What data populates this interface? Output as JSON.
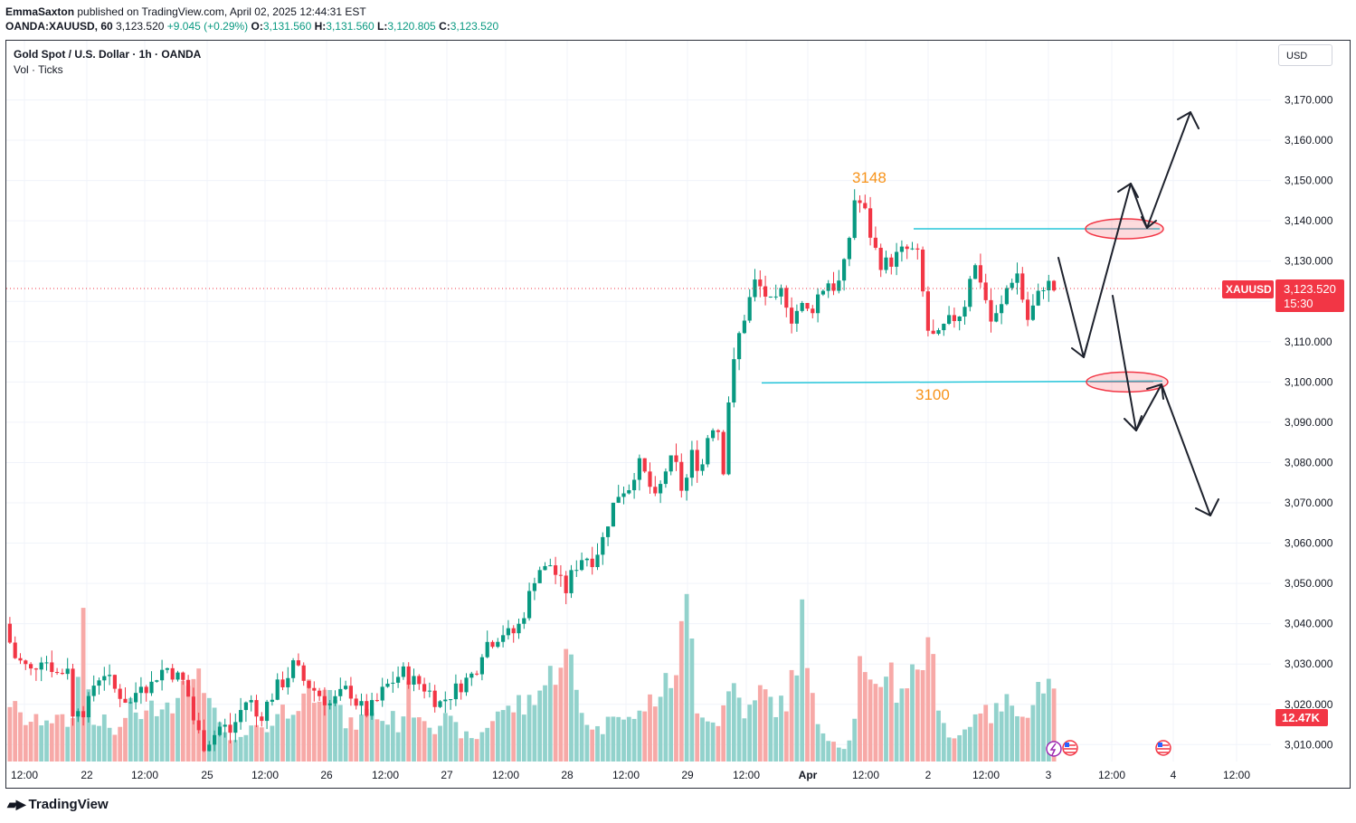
{
  "header": {
    "author": "EmmaSaxton",
    "published": "published on TradingView.com, April 02, 2025 12:44:31 EST",
    "symbol_line": "OANDA:XAUUSD, 60",
    "last": "3,123.520",
    "change": "+9.045 (+0.29%)",
    "o_label": "O:",
    "o": "3,131.560",
    "h_label": "H:",
    "h": "3,131.560",
    "l_label": "L:",
    "l": "3,120.805",
    "c_label": "C:",
    "c": "3,123.520"
  },
  "legend": {
    "title": "Gold Spot / U.S. Dollar · 1h · OANDA",
    "sub": "Vol · Ticks"
  },
  "currency_button": "USD",
  "price_tag": {
    "symbol": "XAUUSD",
    "price": "3,123.520",
    "countdown": "15:30"
  },
  "volume_tag": "12.47K",
  "branding": "TradingView",
  "colors": {
    "up": "#089981",
    "down": "#f23645",
    "up_vol": "#92d2cc",
    "down_vol": "#f7a9a7",
    "level_line": "#26c6da",
    "annotation": "#f7931a"
  },
  "chart_data": {
    "type": "candlestick",
    "price_axis": {
      "ylim": [
        3005,
        3178
      ],
      "ticks": [
        "3,170.000",
        "3,160.000",
        "3,150.000",
        "3,140.000",
        "3,130.000",
        "3,120.000",
        "3,110.000",
        "3,100.000",
        "3,090.000",
        "3,080.000",
        "3,070.000",
        "3,060.000",
        "3,050.000",
        "3,040.000",
        "3,030.000",
        "3,020.000",
        "3,010.000"
      ]
    },
    "time_axis": {
      "ticks": [
        "12:00",
        "22",
        "12:00",
        "25",
        "12:00",
        "26",
        "12:00",
        "27",
        "12:00",
        "28",
        "12:00",
        "29",
        "12:00",
        "Apr",
        "12:00",
        "2",
        "12:00",
        "3",
        "12:00",
        "4",
        "12:00"
      ]
    },
    "price_path": [
      [
        0,
        3040
      ],
      [
        10,
        3032
      ],
      [
        20,
        3030
      ],
      [
        30,
        3028
      ],
      [
        40,
        3032
      ],
      [
        50,
        3030
      ],
      [
        60,
        3027
      ],
      [
        70,
        3030
      ],
      [
        72,
        3014
      ],
      [
        80,
        3020
      ],
      [
        90,
        3018
      ],
      [
        100,
        3026
      ],
      [
        110,
        3028
      ],
      [
        120,
        3024
      ],
      [
        130,
        3022
      ],
      [
        140,
        3020
      ],
      [
        150,
        3026
      ],
      [
        160,
        3024
      ],
      [
        170,
        3028
      ],
      [
        180,
        3029
      ],
      [
        190,
        3027
      ],
      [
        200,
        3025
      ],
      [
        210,
        3015
      ],
      [
        220,
        3010
      ],
      [
        230,
        3012
      ],
      [
        240,
        3015
      ],
      [
        250,
        3013
      ],
      [
        260,
        3018
      ],
      [
        270,
        3022
      ],
      [
        280,
        3016
      ],
      [
        290,
        3020
      ],
      [
        300,
        3024
      ],
      [
        310,
        3026
      ],
      [
        320,
        3030
      ],
      [
        330,
        3026
      ],
      [
        340,
        3024
      ],
      [
        350,
        3022
      ],
      [
        360,
        3020
      ],
      [
        370,
        3022
      ],
      [
        380,
        3024
      ],
      [
        390,
        3020
      ],
      [
        400,
        3018
      ],
      [
        410,
        3020
      ],
      [
        420,
        3024
      ],
      [
        430,
        3026
      ],
      [
        440,
        3028
      ],
      [
        450,
        3026
      ],
      [
        460,
        3025
      ],
      [
        470,
        3023
      ],
      [
        480,
        3020
      ],
      [
        490,
        3022
      ],
      [
        500,
        3024
      ],
      [
        510,
        3026
      ],
      [
        520,
        3028
      ],
      [
        530,
        3035
      ],
      [
        540,
        3036
      ],
      [
        550,
        3038
      ],
      [
        560,
        3037
      ],
      [
        570,
        3040
      ],
      [
        580,
        3047
      ],
      [
        590,
        3055
      ],
      [
        595,
        3051
      ],
      [
        600,
        3056
      ],
      [
        610,
        3052
      ],
      [
        620,
        3048
      ],
      [
        630,
        3054
      ],
      [
        640,
        3057
      ],
      [
        650,
        3056
      ],
      [
        660,
        3060
      ],
      [
        670,
        3068
      ],
      [
        680,
        3073
      ],
      [
        690,
        3074
      ],
      [
        700,
        3080
      ],
      [
        710,
        3076
      ],
      [
        720,
        3070
      ],
      [
        730,
        3078
      ],
      [
        740,
        3081
      ],
      [
        750,
        3072
      ],
      [
        760,
        3082
      ],
      [
        770,
        3078
      ],
      [
        780,
        3090
      ],
      [
        790,
        3088
      ],
      [
        795,
        3078
      ],
      [
        800,
        3095
      ],
      [
        810,
        3110
      ],
      [
        820,
        3118
      ],
      [
        830,
        3125
      ],
      [
        840,
        3122
      ],
      [
        850,
        3118
      ],
      [
        860,
        3123
      ],
      [
        870,
        3116
      ],
      [
        880,
        3119
      ],
      [
        890,
        3117
      ],
      [
        900,
        3122
      ],
      [
        910,
        3125
      ],
      [
        920,
        3123
      ],
      [
        930,
        3130
      ],
      [
        940,
        3146
      ],
      [
        950,
        3143
      ],
      [
        960,
        3134
      ],
      [
        970,
        3129
      ],
      [
        980,
        3130
      ],
      [
        990,
        3132
      ],
      [
        1000,
        3133
      ],
      [
        1010,
        3131
      ],
      [
        1020,
        3113
      ],
      [
        1030,
        3110
      ],
      [
        1040,
        3114
      ],
      [
        1050,
        3116
      ],
      [
        1060,
        3118
      ],
      [
        1070,
        3130
      ],
      [
        1080,
        3125
      ],
      [
        1090,
        3115
      ],
      [
        1100,
        3117
      ],
      [
        1110,
        3125
      ],
      [
        1120,
        3127
      ],
      [
        1130,
        3115
      ],
      [
        1140,
        3120
      ],
      [
        1150,
        3125
      ],
      [
        1160,
        3123
      ]
    ],
    "volume_path": [
      [
        0,
        0.35
      ],
      [
        10,
        0.25
      ],
      [
        20,
        0.23
      ],
      [
        30,
        0.22
      ],
      [
        40,
        0.26
      ],
      [
        50,
        0.24
      ],
      [
        60,
        0.22
      ],
      [
        70,
        0.23
      ],
      [
        80,
        0.9
      ],
      [
        90,
        0.2
      ],
      [
        100,
        0.25
      ],
      [
        110,
        0.18
      ],
      [
        120,
        0.15
      ],
      [
        130,
        0.3
      ],
      [
        140,
        0.28
      ],
      [
        150,
        0.26
      ],
      [
        160,
        0.32
      ],
      [
        170,
        0.36
      ],
      [
        180,
        0.3
      ],
      [
        190,
        0.6
      ],
      [
        200,
        0.3
      ],
      [
        210,
        0.6
      ],
      [
        220,
        0.35
      ],
      [
        230,
        0.2
      ],
      [
        240,
        0.14
      ],
      [
        250,
        0.1
      ],
      [
        260,
        0.14
      ],
      [
        270,
        0.2
      ],
      [
        280,
        0.15
      ],
      [
        290,
        0.26
      ],
      [
        300,
        0.3
      ],
      [
        310,
        0.24
      ],
      [
        320,
        0.35
      ],
      [
        330,
        0.42
      ],
      [
        340,
        0.4
      ],
      [
        350,
        0.55
      ],
      [
        360,
        0.32
      ],
      [
        370,
        0.22
      ],
      [
        380,
        0.2
      ],
      [
        390,
        0.25
      ],
      [
        400,
        0.3
      ],
      [
        410,
        0.22
      ],
      [
        420,
        0.26
      ],
      [
        430,
        0.2
      ],
      [
        440,
        0.38
      ],
      [
        450,
        0.28
      ],
      [
        460,
        0.26
      ],
      [
        470,
        0.2
      ],
      [
        480,
        0.24
      ],
      [
        490,
        0.2
      ],
      [
        500,
        0.16
      ],
      [
        510,
        0.12
      ],
      [
        520,
        0.15
      ],
      [
        530,
        0.22
      ],
      [
        540,
        0.3
      ],
      [
        550,
        0.28
      ],
      [
        560,
        0.33
      ],
      [
        570,
        0.3
      ],
      [
        580,
        0.4
      ],
      [
        590,
        0.42
      ],
      [
        600,
        0.5
      ],
      [
        610,
        0.62
      ],
      [
        620,
        0.55
      ],
      [
        630,
        0.3
      ],
      [
        640,
        0.22
      ],
      [
        650,
        0.18
      ],
      [
        660,
        0.2
      ],
      [
        670,
        0.34
      ],
      [
        680,
        0.28
      ],
      [
        690,
        0.22
      ],
      [
        700,
        0.3
      ],
      [
        710,
        0.35
      ],
      [
        720,
        0.4
      ],
      [
        730,
        0.44
      ],
      [
        740,
        0.63
      ],
      [
        750,
        0.9
      ],
      [
        760,
        0.32
      ],
      [
        770,
        0.28
      ],
      [
        780,
        0.2
      ],
      [
        790,
        0.32
      ],
      [
        800,
        0.45
      ],
      [
        810,
        0.3
      ],
      [
        820,
        0.28
      ],
      [
        830,
        0.4
      ],
      [
        840,
        0.35
      ],
      [
        850,
        0.3
      ],
      [
        860,
        0.35
      ],
      [
        870,
        0.6
      ],
      [
        875,
        0.85
      ],
      [
        880,
        0.55
      ],
      [
        890,
        0.25
      ],
      [
        900,
        0.18
      ],
      [
        910,
        0.12
      ],
      [
        920,
        0.08
      ],
      [
        930,
        0.12
      ],
      [
        940,
        0.55
      ],
      [
        950,
        0.38
      ],
      [
        960,
        0.4
      ],
      [
        970,
        0.6
      ],
      [
        980,
        0.4
      ],
      [
        990,
        0.45
      ],
      [
        1000,
        0.5
      ],
      [
        1010,
        0.62
      ],
      [
        1020,
        0.55
      ],
      [
        1030,
        0.28
      ],
      [
        1040,
        0.12
      ],
      [
        1050,
        0.15
      ],
      [
        1060,
        0.2
      ],
      [
        1070,
        0.35
      ],
      [
        1080,
        0.25
      ],
      [
        1090,
        0.28
      ],
      [
        1100,
        0.32
      ],
      [
        1110,
        0.35
      ],
      [
        1120,
        0.3
      ],
      [
        1130,
        0.28
      ],
      [
        1140,
        0.5
      ],
      [
        1150,
        0.38
      ],
      [
        1160,
        0.3
      ],
      [
        1165,
        0.15
      ]
    ],
    "annotations": {
      "high_label": "3148",
      "low_label": "3100",
      "resistance_level": 3138,
      "support_level": 3100
    },
    "legend_position": "top-left",
    "grid": true
  }
}
